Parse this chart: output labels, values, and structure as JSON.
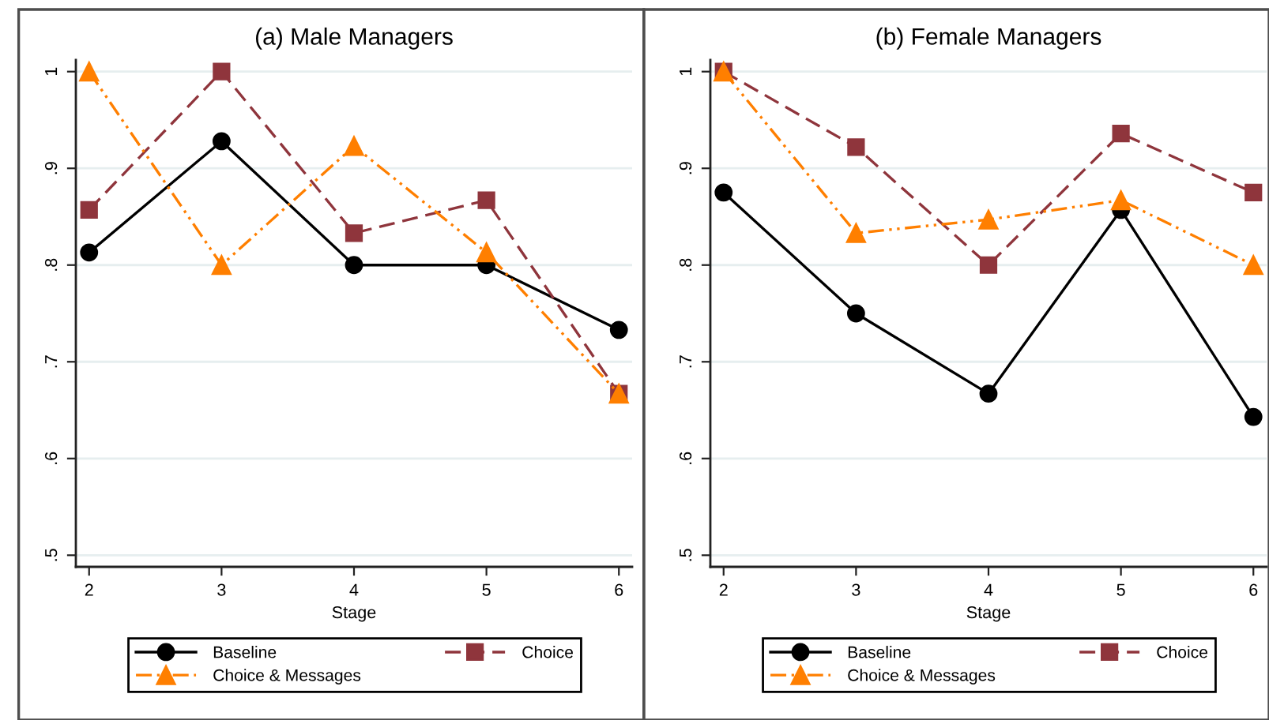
{
  "chart_data": [
    {
      "type": "line",
      "title": "(a) Male Managers",
      "xlabel": "Stage",
      "x": [
        2,
        3,
        4,
        5,
        6
      ],
      "series": [
        {
          "name": "Baseline",
          "color": "#000000",
          "marker": "circle",
          "line_style": "solid",
          "values": [
            0.813,
            0.928,
            0.8,
            0.8,
            0.733
          ]
        },
        {
          "name": "Choice",
          "color": "#8f353c",
          "marker": "square",
          "line_style": "dashed",
          "values": [
            0.857,
            1.0,
            0.833,
            0.867,
            0.667
          ]
        },
        {
          "name": "Choice & Messages",
          "color": "#ff7f00",
          "marker": "triangle",
          "line_style": "dashdot",
          "values": [
            1.0,
            0.8,
            0.923,
            0.813,
            0.667
          ]
        }
      ],
      "xlim": [
        1.9,
        6.1
      ],
      "xticks": [
        2,
        3,
        4,
        5,
        6
      ],
      "ylim": [
        0.488,
        1.012
      ],
      "yticks": [
        {
          "value": 0.5,
          "label": ".5"
        },
        {
          "value": 0.6,
          "label": ".6"
        },
        {
          "value": 0.7,
          "label": ".7"
        },
        {
          "value": 0.8,
          "label": ".8"
        },
        {
          "value": 0.9,
          "label": ".9"
        },
        1
      ],
      "grid": "y",
      "legend": "bottom"
    },
    {
      "type": "line",
      "title": "(b) Female Managers",
      "xlabel": "Stage",
      "x": [
        2,
        3,
        4,
        5,
        6
      ],
      "series": [
        {
          "name": "Baseline",
          "color": "#000000",
          "marker": "circle",
          "line_style": "solid",
          "values": [
            0.875,
            0.75,
            0.667,
            0.857,
            0.643
          ]
        },
        {
          "name": "Choice",
          "color": "#8f353c",
          "marker": "square",
          "line_style": "dashed",
          "values": [
            1.0,
            0.922,
            0.8,
            0.936,
            0.875
          ]
        },
        {
          "name": "Choice & Messages",
          "color": "#ff7f00",
          "marker": "triangle",
          "line_style": "dashdot",
          "values": [
            1.0,
            0.833,
            0.847,
            0.867,
            0.8
          ]
        }
      ],
      "xlim": [
        1.9,
        6.1
      ],
      "xticks": [
        2,
        3,
        4,
        5,
        6
      ],
      "ylim": [
        0.488,
        1.012
      ],
      "yticks": [
        {
          "value": 0.5,
          "label": ".5"
        },
        {
          "value": 0.6,
          "label": ".6"
        },
        {
          "value": 0.7,
          "label": ".7"
        },
        {
          "value": 0.8,
          "label": ".8"
        },
        {
          "value": 0.9,
          "label": ".9"
        },
        1
      ],
      "grid": "y",
      "legend": "bottom"
    }
  ]
}
